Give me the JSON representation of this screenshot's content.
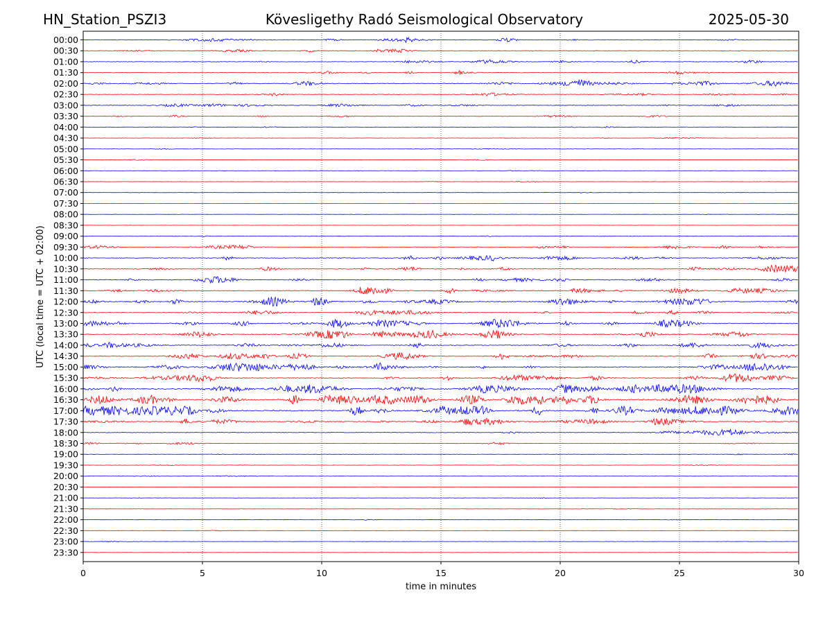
{
  "chart_data": {
    "type": "line",
    "title_left": "HN_Station_PSZI3",
    "title_center": "Kövesligethy Radó Seismological Observatory",
    "title_right": "2025-05-30",
    "xlabel": "time in minutes",
    "ylabel": "UTC (local time = UTC + 02:00)",
    "xlim": [
      0,
      30
    ],
    "x_ticks": [
      "0",
      "5",
      "10",
      "15",
      "20",
      "25",
      "30"
    ],
    "grid": "vertical dotted at 5-minute intervals",
    "series_colors": [
      "#0000ff",
      "#ff0000"
    ],
    "rows": [
      "00:00",
      "00:30",
      "01:00",
      "01:30",
      "02:00",
      "02:30",
      "03:00",
      "03:30",
      "04:00",
      "04:30",
      "05:00",
      "05:30",
      "06:00",
      "06:30",
      "07:00",
      "07:30",
      "08:00",
      "08:30",
      "09:00",
      "09:30",
      "10:00",
      "10:30",
      "11:00",
      "11:30",
      "12:00",
      "12:30",
      "13:00",
      "13:30",
      "14:00",
      "14:30",
      "15:00",
      "15:30",
      "16:00",
      "16:30",
      "17:00",
      "17:30",
      "18:00",
      "18:30",
      "19:00",
      "19:30",
      "20:00",
      "20:30",
      "21:00",
      "21:30",
      "22:00",
      "22:30",
      "23:00",
      "23:30"
    ],
    "row_activity": [
      0.35,
      0.25,
      0.3,
      0.3,
      0.45,
      0.25,
      0.3,
      0.2,
      0.15,
      0.1,
      0.1,
      0.08,
      0.06,
      0.06,
      0.08,
      0.05,
      0.04,
      0.04,
      0.1,
      0.35,
      0.4,
      0.4,
      0.4,
      0.45,
      0.6,
      0.4,
      0.6,
      0.6,
      0.5,
      0.55,
      0.65,
      0.55,
      0.75,
      1.0,
      1.0,
      0.55,
      0.3,
      0.2,
      0.12,
      0.1,
      0.08,
      0.08,
      0.08,
      0.06,
      0.06,
      0.06,
      0.06,
      0.05
    ]
  }
}
